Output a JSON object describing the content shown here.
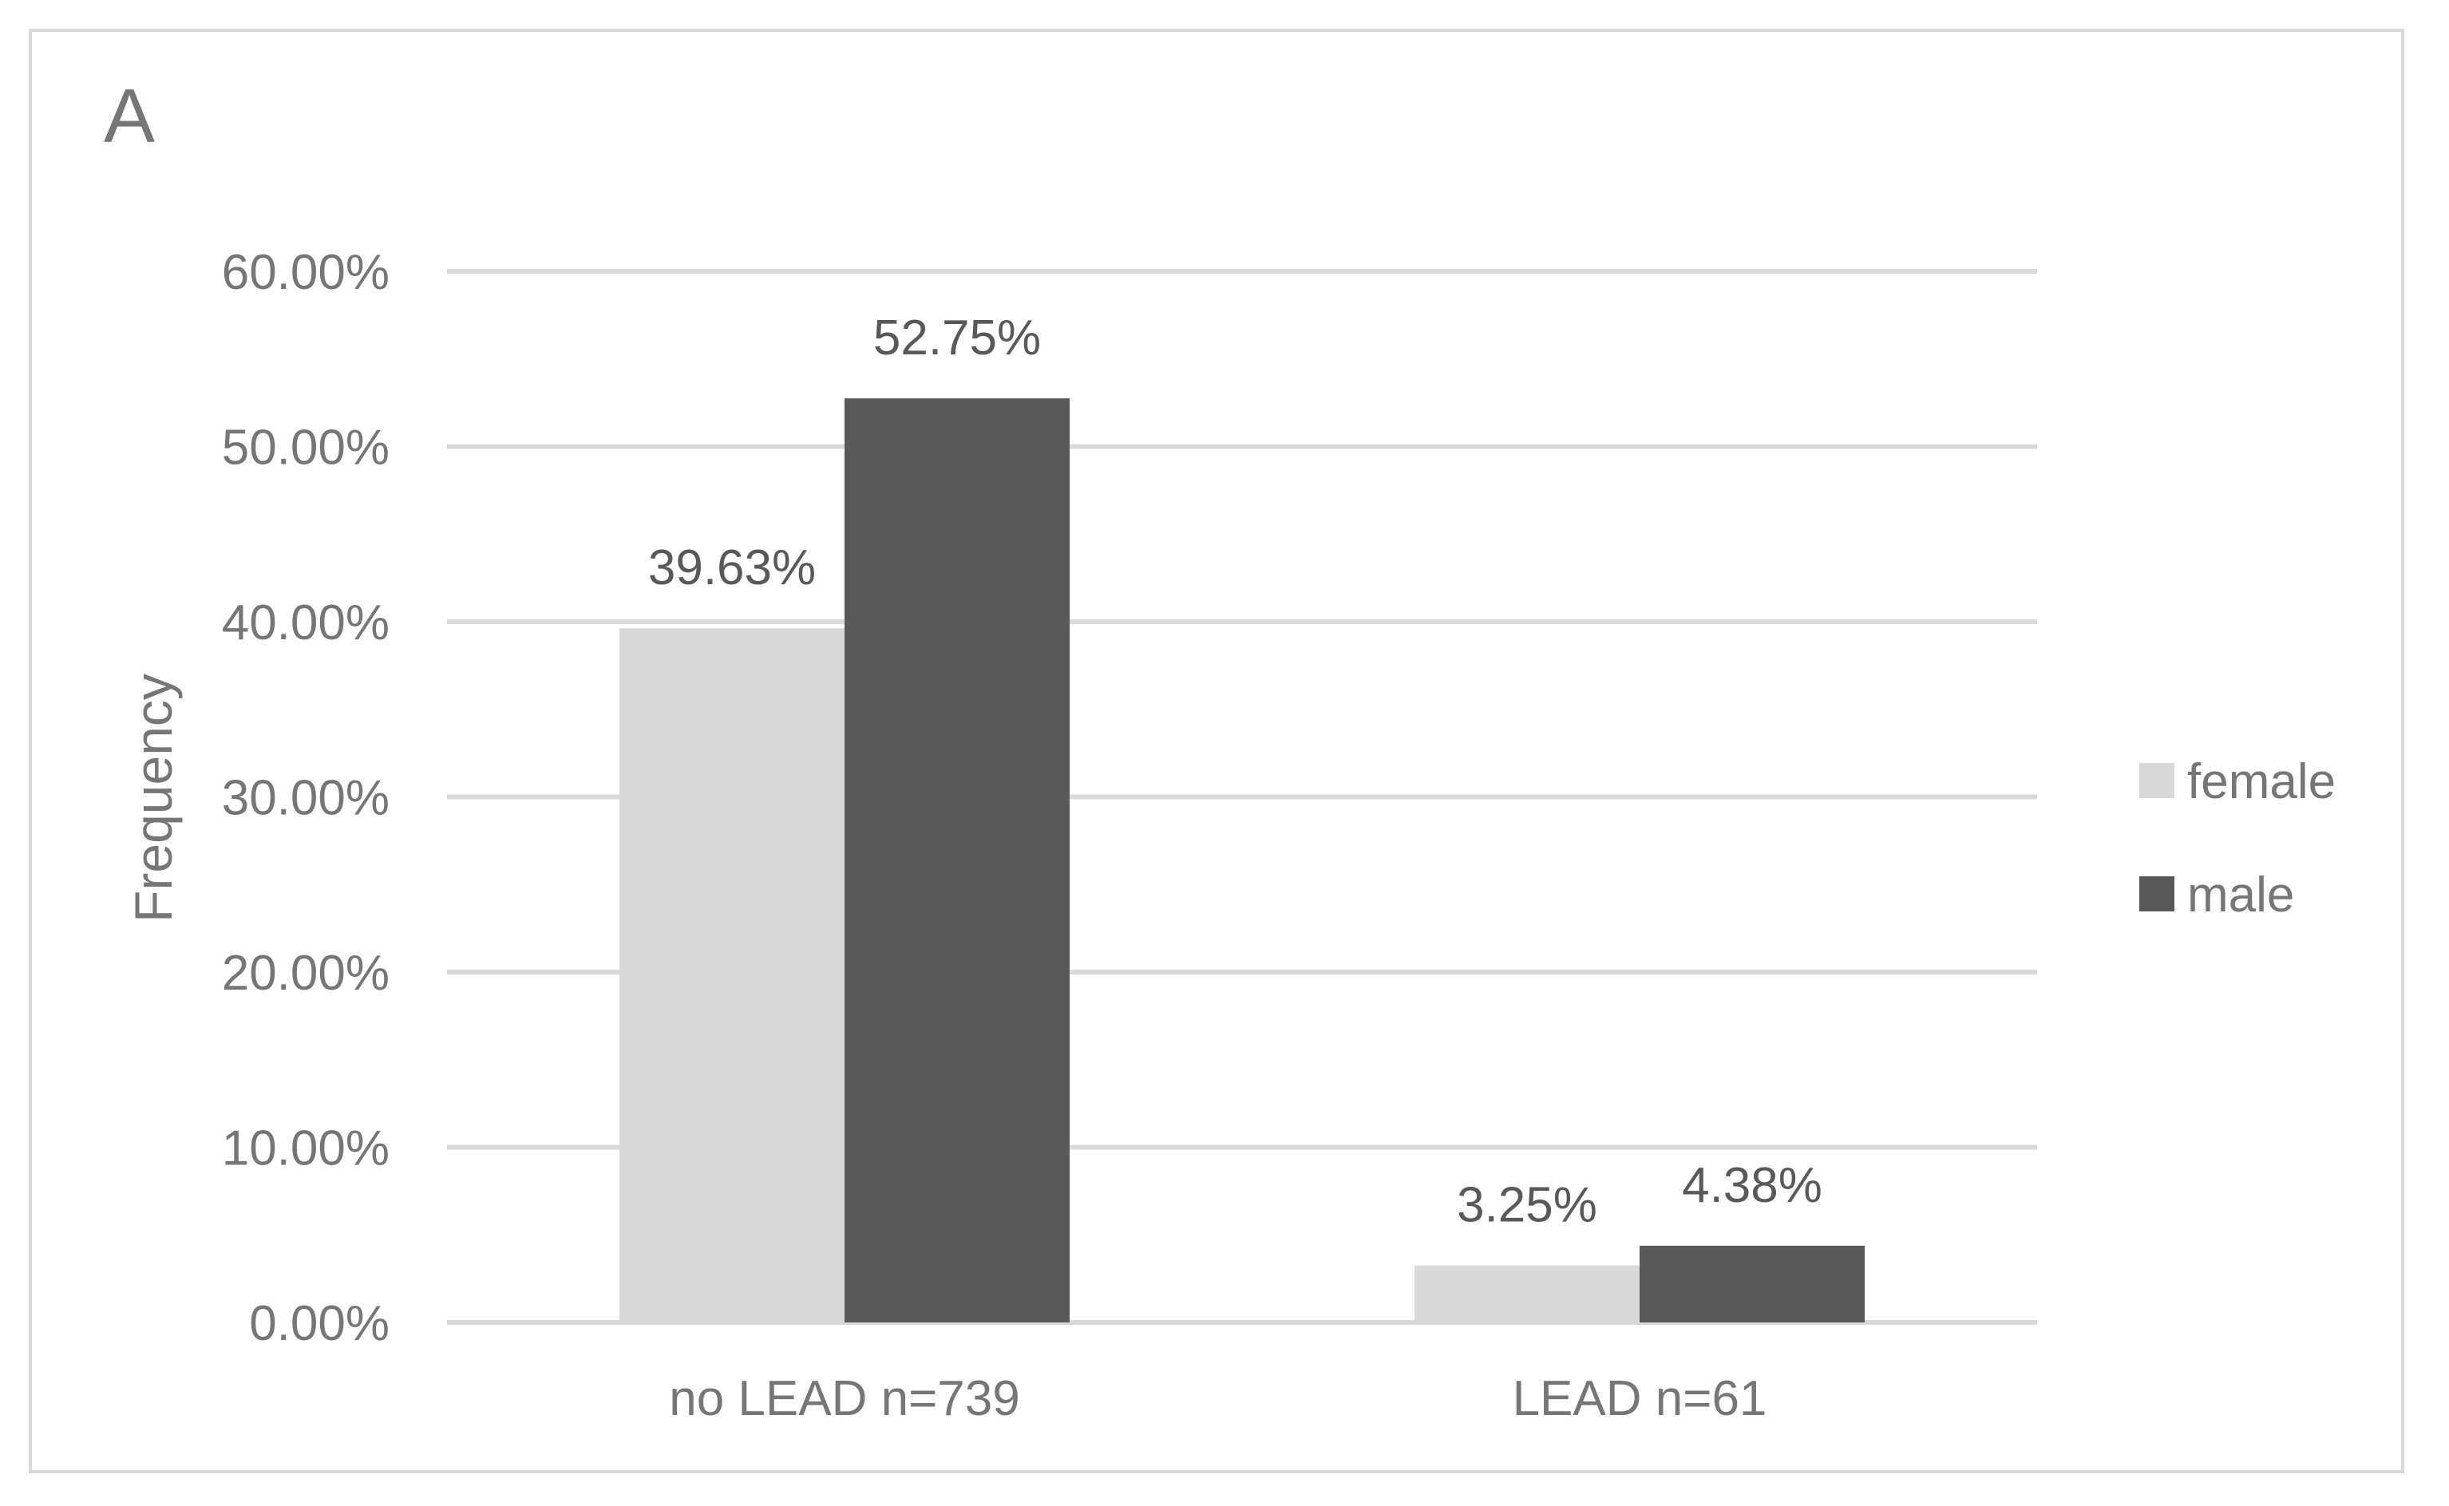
{
  "panel_label": "A",
  "chart_data": {
    "type": "bar",
    "categories": [
      "no LEAD n=739",
      "LEAD n=61"
    ],
    "series": [
      {
        "name": "female",
        "values": [
          39.63,
          3.25
        ],
        "labels": [
          "39.63%",
          "3.25%"
        ],
        "color": "#d9d9d9"
      },
      {
        "name": "male",
        "values": [
          52.75,
          4.38
        ],
        "labels": [
          "52.75%",
          "4.38%"
        ],
        "color": "#595959"
      }
    ],
    "ylabel": "Frequency",
    "xlabel": "",
    "ylim": [
      0,
      60
    ],
    "yticks": [
      0,
      10,
      20,
      30,
      40,
      50,
      60
    ],
    "ytick_labels": [
      "0.00%",
      "10.00%",
      "20.00%",
      "30.00%",
      "40.00%",
      "50.00%",
      "60.00%"
    ],
    "grid": true,
    "legend_position": "right"
  }
}
